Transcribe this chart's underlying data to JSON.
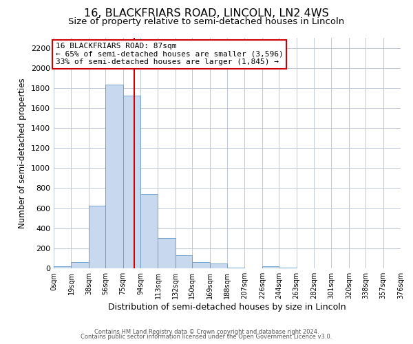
{
  "title": "16, BLACKFRIARS ROAD, LINCOLN, LN2 4WS",
  "subtitle": "Size of property relative to semi-detached houses in Lincoln",
  "xlabel": "Distribution of semi-detached houses by size in Lincoln",
  "ylabel": "Number of semi-detached properties",
  "annotation_title": "16 BLACKFRIARS ROAD: 87sqm",
  "annotation_line1": "← 65% of semi-detached houses are smaller (3,596)",
  "annotation_line2": "33% of semi-detached houses are larger (1,845) →",
  "footer_line1": "Contains HM Land Registry data © Crown copyright and database right 2024.",
  "footer_line2": "Contains public sector information licensed under the Open Government Licence v3.0.",
  "bar_color": "#c8d8ee",
  "bar_edge_color": "#6699cc",
  "property_size": 87,
  "vline_color": "#cc0000",
  "bin_edges": [
    0,
    19,
    38,
    56,
    75,
    94,
    113,
    132,
    150,
    169,
    188,
    207,
    226,
    244,
    263,
    282,
    301,
    320,
    338,
    357,
    376
  ],
  "bin_labels": [
    "0sqm",
    "19sqm",
    "38sqm",
    "56sqm",
    "75sqm",
    "94sqm",
    "113sqm",
    "132sqm",
    "150sqm",
    "169sqm",
    "188sqm",
    "207sqm",
    "226sqm",
    "244sqm",
    "263sqm",
    "282sqm",
    "301sqm",
    "320sqm",
    "338sqm",
    "357sqm",
    "376sqm"
  ],
  "bar_heights": [
    20,
    60,
    625,
    1830,
    1725,
    740,
    305,
    130,
    65,
    45,
    10,
    0,
    20,
    5,
    2,
    1,
    0,
    0,
    0,
    0
  ],
  "ylim": [
    0,
    2300
  ],
  "yticks": [
    0,
    200,
    400,
    600,
    800,
    1000,
    1200,
    1400,
    1600,
    1800,
    2000,
    2200
  ],
  "background_color": "#ffffff",
  "grid_color": "#c0c8d8",
  "annotation_box_color": "#ffffff",
  "annotation_box_edge": "#cc0000",
  "title_fontsize": 11.5,
  "subtitle_fontsize": 9.5,
  "ylabel_fontsize": 8.5,
  "xlabel_fontsize": 9,
  "tick_fontsize": 8,
  "xtick_fontsize": 7,
  "footer_fontsize": 6,
  "annotation_fontsize": 8
}
